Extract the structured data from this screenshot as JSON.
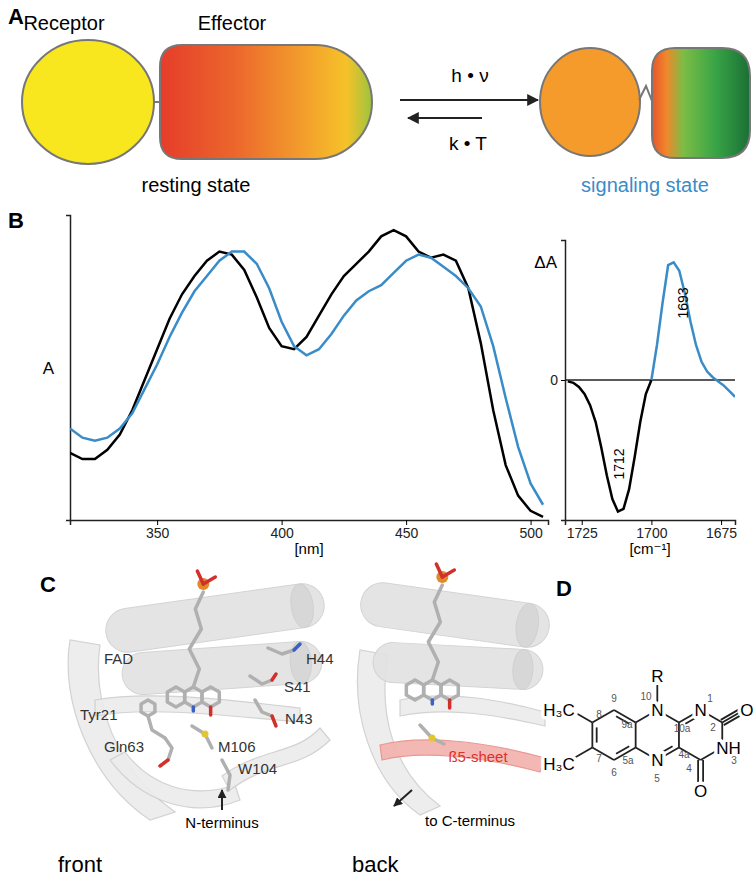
{
  "panel_labels": [
    "A",
    "B",
    "C",
    "D"
  ],
  "panel_a": {
    "receptor": "Receptor",
    "effector": "Effector",
    "resting": "resting state",
    "signaling": "signaling state",
    "forward": "h • ν",
    "backward": "k • T"
  },
  "chart_data": [
    {
      "type": "line",
      "x": [
        315,
        320,
        325,
        330,
        335,
        340,
        345,
        350,
        355,
        360,
        365,
        370,
        375,
        380,
        385,
        390,
        395,
        400,
        405,
        410,
        415,
        420,
        425,
        430,
        435,
        440,
        445,
        450,
        455,
        460,
        465,
        470,
        475,
        480,
        485,
        490,
        495,
        500,
        505
      ],
      "series": [
        {
          "color": "#000000",
          "values": [
            0.22,
            0.2,
            0.2,
            0.23,
            0.28,
            0.36,
            0.46,
            0.56,
            0.66,
            0.74,
            0.8,
            0.85,
            0.88,
            0.87,
            0.82,
            0.73,
            0.63,
            0.57,
            0.56,
            0.6,
            0.67,
            0.74,
            0.8,
            0.84,
            0.88,
            0.93,
            0.95,
            0.93,
            0.88,
            0.86,
            0.87,
            0.85,
            0.76,
            0.58,
            0.36,
            0.18,
            0.08,
            0.03,
            0.01
          ]
        },
        {
          "color": "#3a8cc8",
          "values": [
            0.3,
            0.27,
            0.26,
            0.27,
            0.3,
            0.35,
            0.43,
            0.51,
            0.6,
            0.68,
            0.75,
            0.8,
            0.85,
            0.88,
            0.88,
            0.84,
            0.76,
            0.65,
            0.57,
            0.54,
            0.56,
            0.61,
            0.67,
            0.72,
            0.75,
            0.77,
            0.81,
            0.85,
            0.87,
            0.86,
            0.83,
            0.8,
            0.76,
            0.7,
            0.57,
            0.4,
            0.24,
            0.12,
            0.05
          ]
        }
      ],
      "xlim": [
        315,
        507
      ],
      "ylim": [
        0,
        1
      ],
      "xticks": [
        350,
        400,
        450,
        500
      ],
      "x_label": "[nm]",
      "y_label": "A",
      "tick_labels": "x"
    },
    {
      "type": "line",
      "x": [
        1670,
        1672,
        1674,
        1676,
        1678,
        1680,
        1682,
        1684,
        1686,
        1688,
        1690,
        1692,
        1694,
        1696,
        1698,
        1700,
        1702,
        1704,
        1706,
        1708,
        1710,
        1712,
        1714,
        1716,
        1718,
        1720,
        1722,
        1724,
        1726,
        1728,
        1730
      ],
      "series": [
        {
          "color": "#000000",
          "values": [
            null,
            null,
            null,
            null,
            null,
            null,
            null,
            null,
            null,
            null,
            null,
            null,
            null,
            null,
            null,
            0.0,
            -0.1,
            -0.3,
            -0.55,
            -0.78,
            -0.92,
            -0.94,
            -0.85,
            -0.68,
            -0.48,
            -0.3,
            -0.18,
            -0.1,
            -0.05,
            -0.02,
            -0.01
          ]
        },
        {
          "color": "#3a8cc8",
          "values": [
            -0.12,
            -0.08,
            -0.04,
            -0.01,
            0.02,
            0.06,
            0.13,
            0.25,
            0.42,
            0.62,
            0.78,
            0.84,
            0.82,
            0.55,
            0.25,
            0.0,
            null,
            null,
            null,
            null,
            null,
            null,
            null,
            null,
            null,
            null,
            null,
            null,
            null,
            null,
            null
          ]
        }
      ],
      "xlim": [
        1731,
        1670
      ],
      "ylim": [
        -1,
        1
      ],
      "xticks": [
        1725,
        1700,
        1675
      ],
      "yticks": [
        0
      ],
      "grid": true,
      "x_label": "[cm⁻¹]",
      "y_label": "ΔA",
      "annotations": [
        {
          "text": "1712",
          "x": 1710,
          "y": -0.6
        },
        {
          "text": "1693",
          "x": 1687,
          "y": 0.55
        }
      ]
    }
  ],
  "panel_c": {
    "residue_labels": [
      "FAD",
      "H44",
      "S41",
      "N43",
      "Tyr21",
      "Gln63",
      "M106",
      "W104"
    ],
    "n_terminus": "N-terminus",
    "c_terminus": "to C-terminus",
    "sheet_label": "ß5-sheet",
    "front_label": "front",
    "back_label": "back"
  },
  "panel_d": {
    "atom_labels": [
      "R",
      "N",
      "N",
      "N",
      "NH",
      "O",
      "O",
      "H₃C",
      "H₃C"
    ],
    "position_numbers": [
      "1",
      "2",
      "3",
      "4",
      "4a",
      "5",
      "5a",
      "6",
      "7",
      "8",
      "9",
      "9a",
      "10",
      "10a"
    ]
  }
}
